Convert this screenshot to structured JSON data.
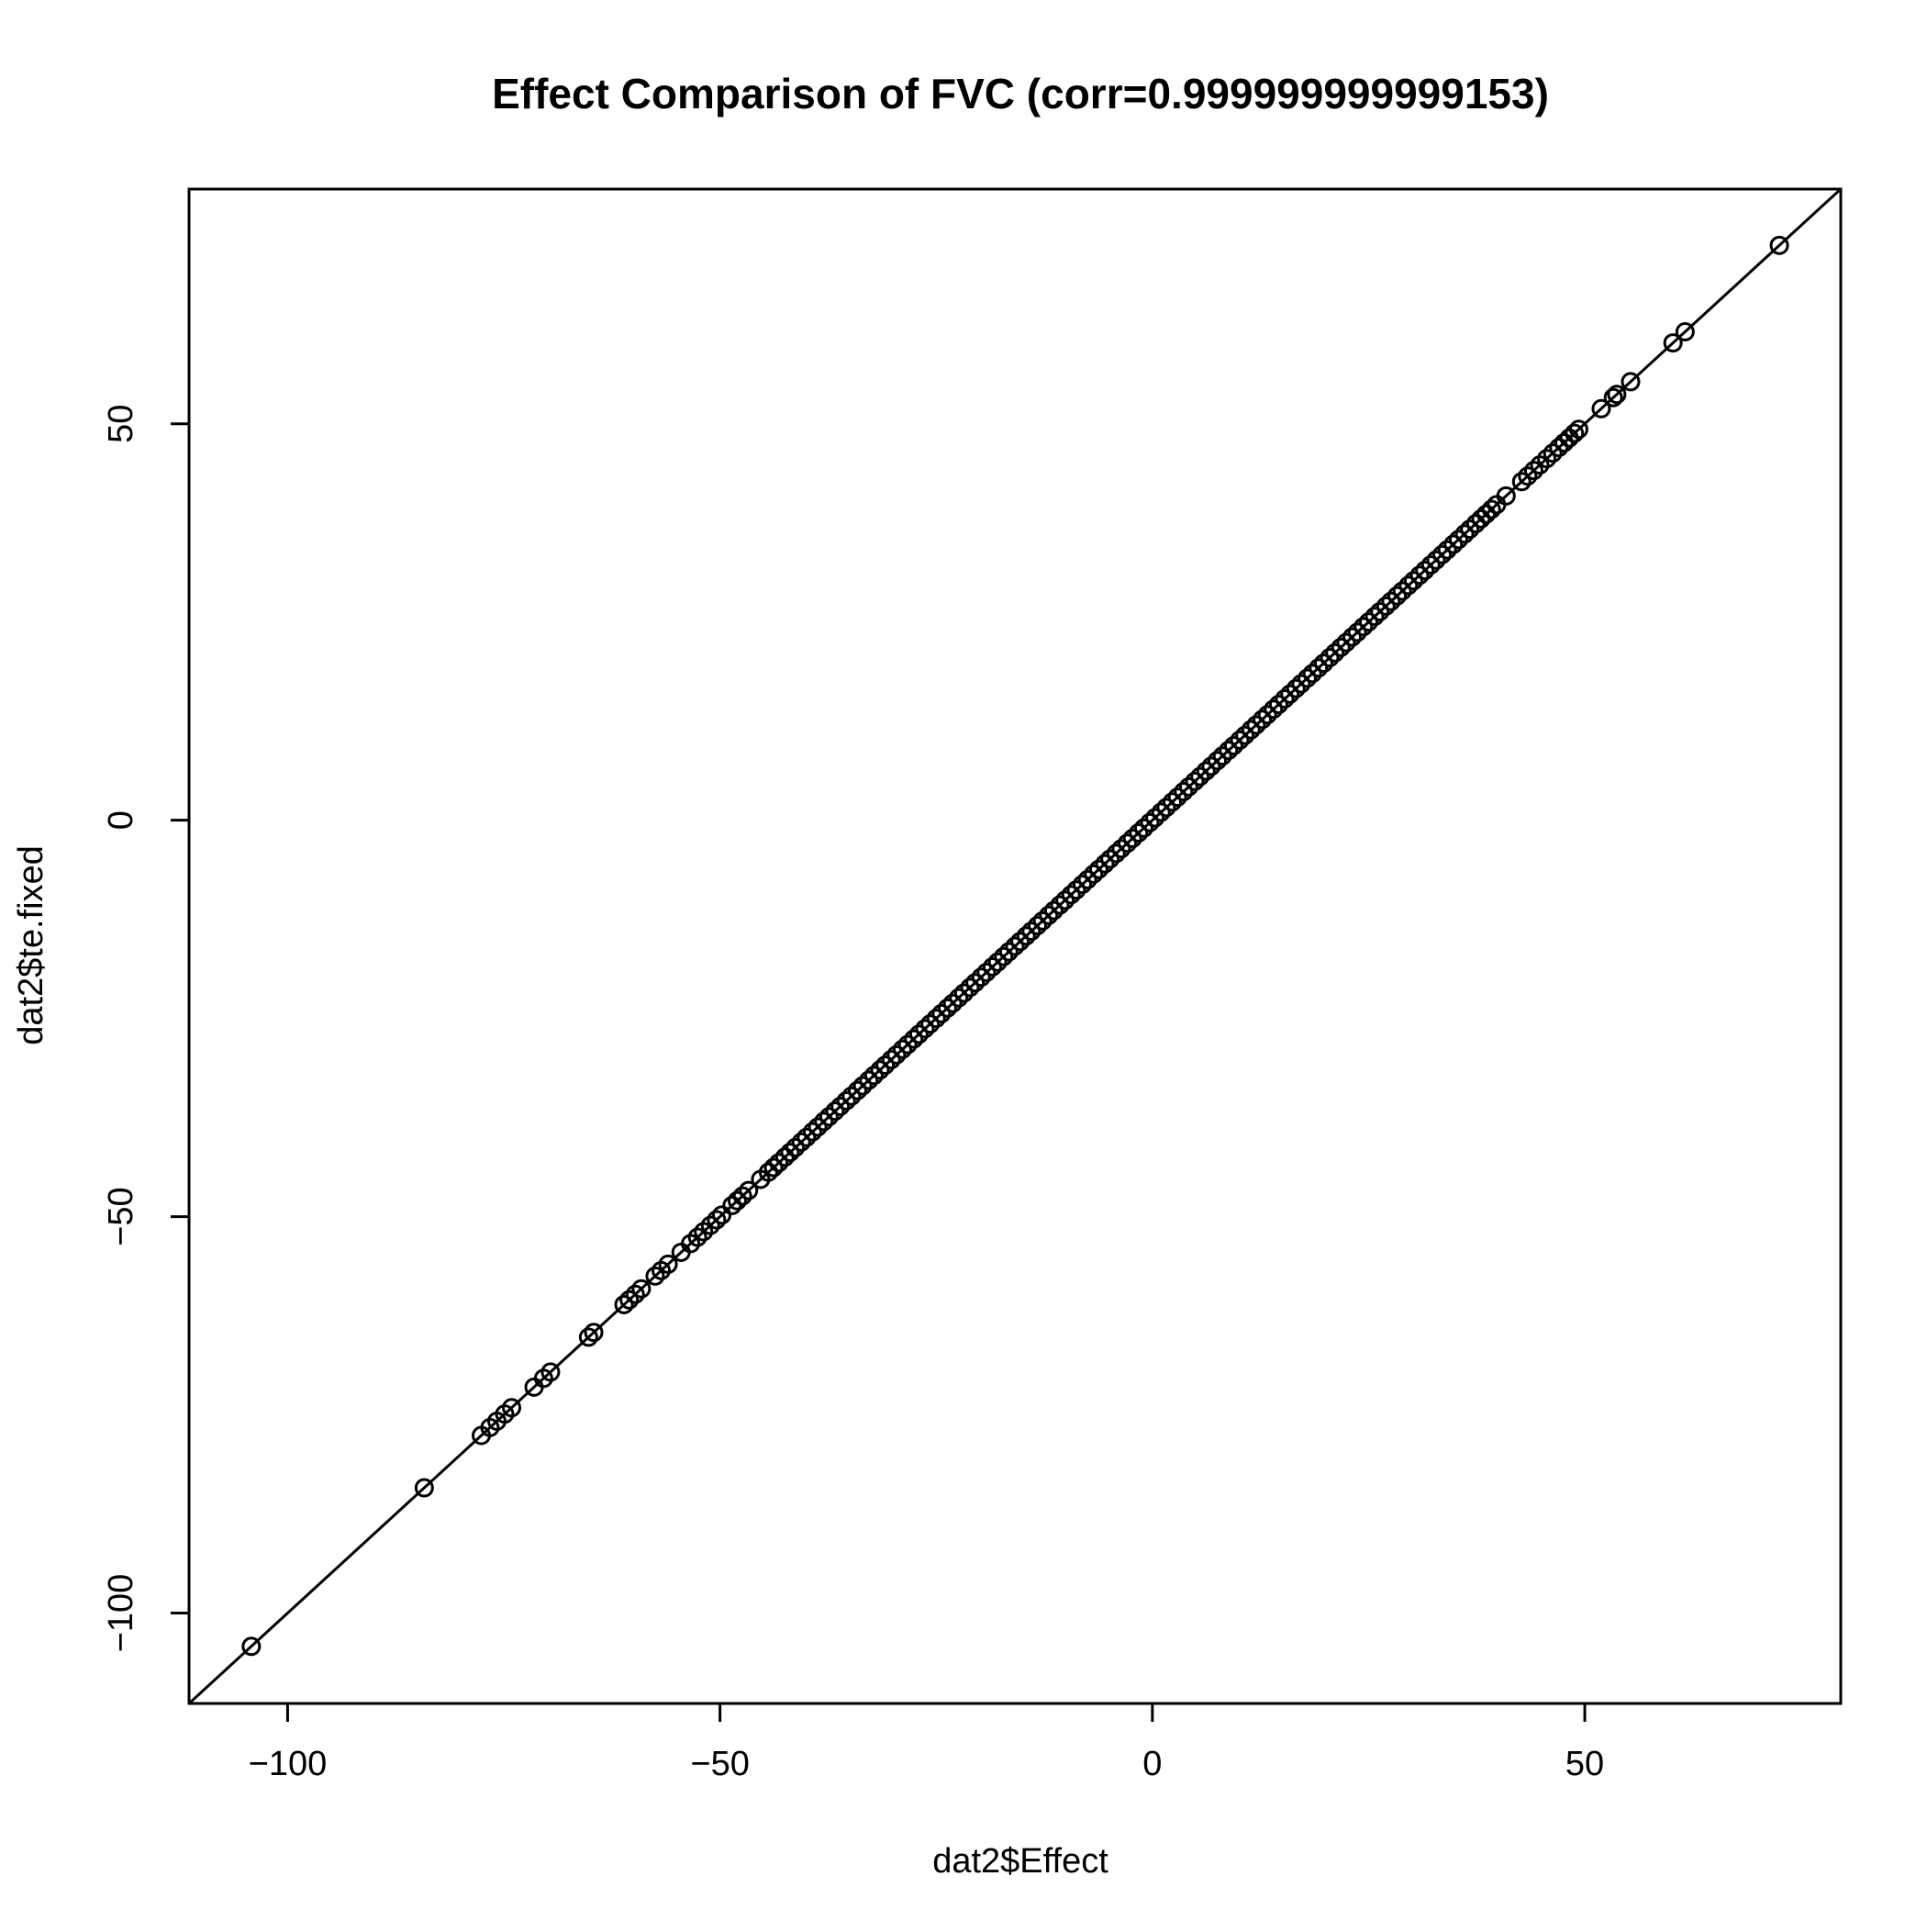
{
  "chart_data": {
    "type": "scatter",
    "title": "Effect Comparison of FVC (corr=0.999999999999153)",
    "xlabel": "dat2$Effect",
    "ylabel": "dat2$te.fixed",
    "xlim": [
      -111.4,
      79.6
    ],
    "ylim": [
      -111.4,
      79.6
    ],
    "x_ticks": [
      -100,
      -50,
      0,
      50
    ],
    "x_tick_labels": [
      "−100",
      "−50",
      "0",
      "50"
    ],
    "y_ticks": [
      -100,
      -50,
      0,
      50
    ],
    "y_tick_labels": [
      "−100",
      "−50",
      "0",
      "50"
    ],
    "grid": false,
    "legend": null,
    "reference_line": {
      "intercept": 0,
      "slope": 1
    },
    "marker": "open-circle",
    "color": "#000000",
    "points": {
      "x": [
        -104.2,
        -84.2,
        -77.6,
        -76.6,
        -75.8,
        -74.9,
        -74.1,
        -71.5,
        -70.4,
        -69.6,
        -65.2,
        -64.6,
        -61.1,
        -60.5,
        -59.8,
        -59.1,
        -57.5,
        -56.8,
        -56.0,
        -54.5,
        -53.4,
        -52.6,
        -51.9,
        -51.1,
        -50.4,
        -49.8,
        -48.6,
        -48.0,
        -47.4,
        -46.7,
        -45.3,
        -44.4,
        -43.8,
        -43.2,
        -42.5,
        -41.9,
        -41.3,
        -40.6,
        -40.0,
        -39.3,
        -38.7,
        -38.0,
        -37.4,
        -36.7,
        -36.1,
        -35.4,
        -34.8,
        -34.1,
        -33.5,
        -32.8,
        -32.2,
        -31.5,
        -30.9,
        -30.2,
        -29.6,
        -28.9,
        -28.3,
        -27.6,
        -27.0,
        -26.3,
        -25.7,
        -25.0,
        -24.4,
        -23.7,
        -23.1,
        -22.4,
        -21.8,
        -21.1,
        -20.5,
        -19.8,
        -19.2,
        -18.5,
        -17.9,
        -17.2,
        -16.6,
        -15.9,
        -15.3,
        -14.6,
        -14.0,
        -13.3,
        -12.7,
        -12.0,
        -11.4,
        -10.7,
        -10.1,
        -9.4,
        -8.8,
        -8.1,
        -7.5,
        -6.8,
        -6.2,
        -5.5,
        -4.9,
        -4.2,
        -3.6,
        -2.9,
        -2.3,
        -1.6,
        -1.0,
        -0.3,
        0.3,
        1.0,
        1.6,
        2.3,
        2.9,
        3.6,
        4.2,
        4.9,
        5.5,
        6.2,
        6.8,
        7.5,
        8.1,
        8.8,
        9.4,
        10.1,
        10.7,
        11.4,
        12.0,
        12.7,
        13.3,
        14.0,
        14.6,
        15.3,
        15.9,
        16.6,
        17.2,
        17.9,
        18.5,
        19.2,
        19.8,
        20.5,
        21.1,
        21.8,
        22.4,
        23.1,
        23.7,
        24.4,
        25.0,
        25.7,
        26.3,
        27.0,
        27.6,
        28.3,
        28.9,
        29.6,
        30.2,
        30.9,
        31.5,
        32.2,
        32.8,
        33.5,
        34.1,
        34.8,
        35.4,
        36.1,
        36.7,
        37.4,
        38.0,
        38.6,
        39.2,
        39.8,
        40.9,
        42.7,
        43.4,
        44.1,
        44.8,
        45.6,
        46.3,
        47.0,
        47.6,
        48.2,
        48.8,
        49.3,
        51.9,
        53.3,
        53.7,
        55.3,
        60.2,
        61.6,
        72.5
      ],
      "y": [
        -104.2,
        -84.2,
        -77.6,
        -76.6,
        -75.8,
        -74.9,
        -74.1,
        -71.5,
        -70.4,
        -69.6,
        -65.2,
        -64.6,
        -61.1,
        -60.5,
        -59.8,
        -59.1,
        -57.5,
        -56.8,
        -56.0,
        -54.5,
        -53.4,
        -52.6,
        -51.9,
        -51.1,
        -50.4,
        -49.8,
        -48.6,
        -48.0,
        -47.4,
        -46.7,
        -45.3,
        -44.4,
        -43.8,
        -43.2,
        -42.5,
        -41.9,
        -41.3,
        -40.6,
        -40.0,
        -39.3,
        -38.7,
        -38.0,
        -37.4,
        -36.7,
        -36.1,
        -35.4,
        -34.8,
        -34.1,
        -33.5,
        -32.8,
        -32.2,
        -31.5,
        -30.9,
        -30.2,
        -29.6,
        -28.9,
        -28.3,
        -27.6,
        -27.0,
        -26.3,
        -25.7,
        -25.0,
        -24.4,
        -23.7,
        -23.1,
        -22.4,
        -21.8,
        -21.1,
        -20.5,
        -19.8,
        -19.2,
        -18.5,
        -17.9,
        -17.2,
        -16.6,
        -15.9,
        -15.3,
        -14.6,
        -14.0,
        -13.3,
        -12.7,
        -12.0,
        -11.4,
        -10.7,
        -10.1,
        -9.4,
        -8.8,
        -8.1,
        -7.5,
        -6.8,
        -6.2,
        -5.5,
        -4.9,
        -4.2,
        -3.6,
        -2.9,
        -2.3,
        -1.6,
        -1.0,
        -0.3,
        0.3,
        1.0,
        1.6,
        2.3,
        2.9,
        3.6,
        4.2,
        4.9,
        5.5,
        6.2,
        6.8,
        7.5,
        8.1,
        8.8,
        9.4,
        10.1,
        10.7,
        11.4,
        12.0,
        12.7,
        13.3,
        14.0,
        14.6,
        15.3,
        15.9,
        16.6,
        17.2,
        17.9,
        18.5,
        19.2,
        19.8,
        20.5,
        21.1,
        21.8,
        22.4,
        23.1,
        23.7,
        24.4,
        25.0,
        25.7,
        26.3,
        27.0,
        27.6,
        28.3,
        28.9,
        29.6,
        30.2,
        30.9,
        31.5,
        32.2,
        32.8,
        33.5,
        34.1,
        34.8,
        35.4,
        36.1,
        36.7,
        37.4,
        38.0,
        38.6,
        39.2,
        39.8,
        40.9,
        42.7,
        43.4,
        44.1,
        44.8,
        45.6,
        46.3,
        47.0,
        47.6,
        48.2,
        48.8,
        49.3,
        51.9,
        53.3,
        53.7,
        55.3,
        60.2,
        61.6,
        72.5
      ]
    }
  }
}
